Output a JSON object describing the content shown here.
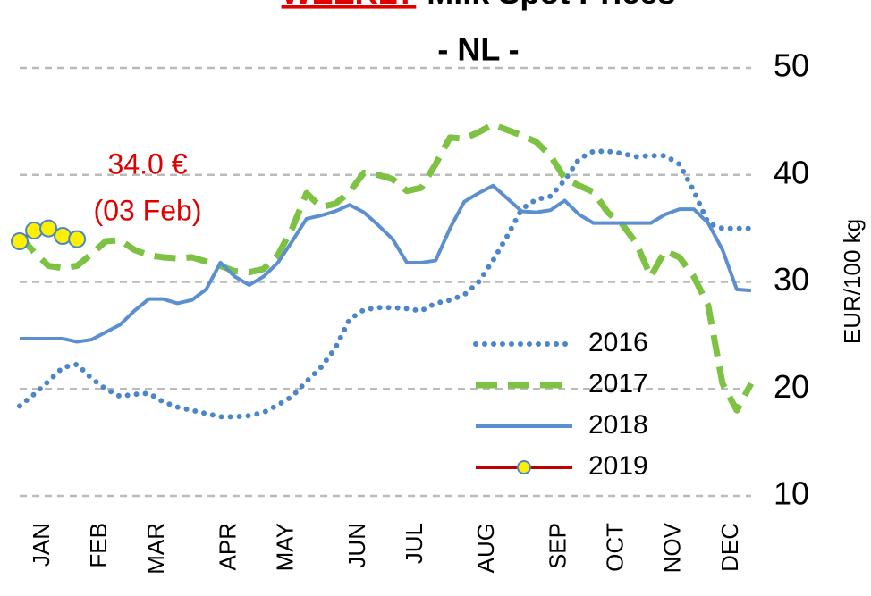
{
  "chart_data": {
    "type": "line",
    "title_highlight": "WEEKLY",
    "title": "Milk Spot Prices",
    "subtitle": "- NL -",
    "y_axis_label": "EUR/100 kg",
    "annotation": [
      "34.0 €",
      "(03 Feb)"
    ],
    "categories": [
      null,
      "JAN",
      null,
      null,
      null,
      "FEB",
      null,
      null,
      null,
      "MAR",
      null,
      null,
      null,
      null,
      "APR",
      null,
      null,
      null,
      "MAY",
      null,
      null,
      null,
      null,
      "JUN",
      null,
      null,
      null,
      "JUL",
      null,
      null,
      null,
      null,
      "AUG",
      null,
      null,
      null,
      null,
      "SEP",
      null,
      null,
      null,
      "OCT",
      null,
      null,
      null,
      "NOV",
      null,
      null,
      null,
      "DEC",
      null,
      null
    ],
    "ylim": [
      10,
      50
    ],
    "yticks": [
      10,
      20,
      30,
      40,
      50
    ],
    "grid": true,
    "y_axis_side": "right",
    "series": [
      {
        "name": "2016",
        "color": "#4a86c8",
        "style": "dotted",
        "values": [
          18.4,
          19.5,
          20.7,
          22,
          22.3,
          21,
          20,
          19.3,
          19.5,
          19.6,
          18.8,
          18.3,
          18,
          17.7,
          17.4,
          17.4,
          17.5,
          17.8,
          18.5,
          19.3,
          20.7,
          22,
          23.8,
          26.5,
          27.4,
          27.6,
          27.6,
          27.5,
          27.3,
          28,
          28.3,
          28.8,
          30,
          32,
          34.3,
          36.8,
          37.7,
          38,
          39.5,
          41.5,
          42.2,
          42.2,
          42,
          41.7,
          41.8,
          41.8,
          41,
          38.5,
          35.5,
          35,
          35,
          35
        ]
      },
      {
        "name": "2017",
        "color": "#7dc242",
        "style": "dashed",
        "values": [
          34.3,
          32.8,
          31.5,
          31.3,
          31.5,
          32.6,
          33.8,
          33.9,
          33,
          32.5,
          32.3,
          32.2,
          32.3,
          31.9,
          31.5,
          31,
          30.9,
          31.2,
          32.5,
          35,
          38.3,
          37,
          37.3,
          38.4,
          40.2,
          40,
          39.6,
          38.5,
          38.8,
          41,
          43.5,
          43.4,
          44,
          44.7,
          44.2,
          43.7,
          43.1,
          41.8,
          39.7,
          39,
          38.4,
          36.5,
          35.4,
          33.6,
          30.5,
          32.9,
          32.3,
          30.5,
          27.8,
          20.5,
          18,
          20.5
        ]
      },
      {
        "name": "2018",
        "color": "#5b8fd0",
        "style": "solid",
        "values": [
          24.7,
          24.7,
          24.7,
          24.7,
          24.4,
          24.6,
          25.3,
          26,
          27.3,
          28.4,
          28.4,
          28,
          28.3,
          29.3,
          31.8,
          30.5,
          29.7,
          30.5,
          31.8,
          33.8,
          35.9,
          36.2,
          36.6,
          37.2,
          36.5,
          35.3,
          34,
          31.8,
          31.8,
          32,
          35,
          37.5,
          38.3,
          39,
          37.8,
          36.6,
          36.5,
          36.7,
          37.6,
          36.3,
          35.5,
          35.5,
          35.5,
          35.5,
          35.5,
          36.3,
          36.8,
          36.8,
          35.5,
          33,
          29.3,
          29.2
        ]
      },
      {
        "name": "2019",
        "color": "#c00000",
        "marker_color": "#ffef00",
        "style": "marker",
        "values": [
          33.8,
          34.8,
          35,
          34.3,
          34,
          null,
          null,
          null,
          null,
          null,
          null,
          null,
          null,
          null,
          null,
          null,
          null,
          null,
          null,
          null,
          null,
          null,
          null,
          null,
          null,
          null,
          null,
          null,
          null,
          null,
          null,
          null,
          null,
          null,
          null,
          null,
          null,
          null,
          null,
          null,
          null,
          null,
          null,
          null,
          null,
          null,
          null,
          null,
          null,
          null,
          null,
          null
        ]
      }
    ]
  }
}
